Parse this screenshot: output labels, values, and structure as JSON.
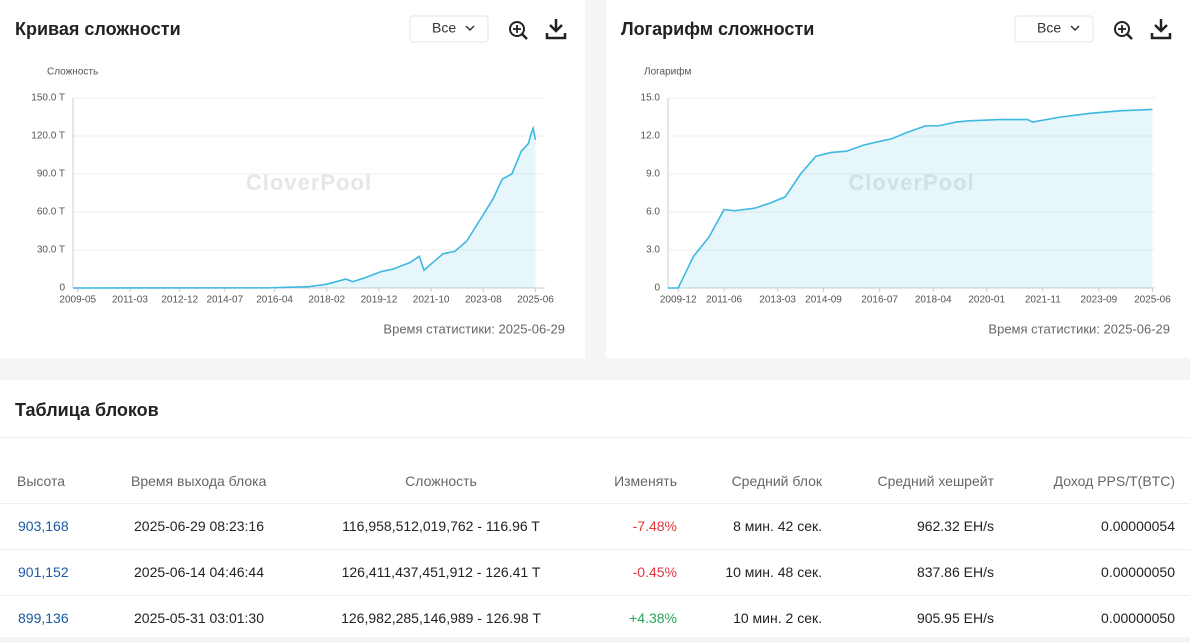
{
  "chart_data": [
    {
      "type": "line",
      "title": "Кривая сложности",
      "filter": "Все",
      "y_label": "Сложность",
      "watermark": "CloverPool",
      "footnote": "Время статистики: 2025-06-29",
      "xlim": [
        "2009-03",
        "2025-10"
      ],
      "xticks": [
        "2009-05",
        "2011-03",
        "2012-12",
        "2014-07",
        "2016-04",
        "2018-02",
        "2019-12",
        "2021-10",
        "2023-08",
        "2025-06"
      ],
      "ylim": [
        0,
        150
      ],
      "yticks": [
        0,
        {
          "value": 30,
          "label": "30.0 T"
        },
        {
          "value": 60,
          "label": "60.0 T"
        },
        {
          "value": 90,
          "label": "90.0 T"
        },
        {
          "value": 120,
          "label": "120.0 T"
        },
        {
          "value": 150,
          "label": "150.0 T"
        }
      ],
      "grid": true,
      "series": [
        {
          "color": "#3db8e0",
          "x": [
            "2009-03",
            "2016-01",
            "2017-06",
            "2018-02",
            "2018-10",
            "2019-01",
            "2019-06",
            "2020-01",
            "2020-06",
            "2021-01",
            "2021-05",
            "2021-07",
            "2021-10",
            "2022-03",
            "2022-08",
            "2023-01",
            "2023-06",
            "2023-12",
            "2024-04",
            "2024-08",
            "2024-12",
            "2025-03",
            "2025-04",
            "2025-05",
            "2025-06"
          ],
          "values": [
            0,
            0.1,
            1,
            3,
            7,
            5,
            8,
            13,
            15,
            20,
            25,
            14,
            19,
            27,
            29,
            37,
            52,
            70,
            86,
            90,
            108,
            114,
            121,
            126,
            117
          ]
        }
      ]
    },
    {
      "type": "line",
      "title": "Логарифм сложности",
      "filter": "Все",
      "y_label": "Логарифм",
      "watermark": "CloverPool",
      "footnote": "Время статистики: 2025-06-29",
      "xlim": [
        "2009-08",
        "2025-07"
      ],
      "xticks": [
        "2009-12",
        "2011-06",
        "2013-03",
        "2014-09",
        "2016-07",
        "2018-04",
        "2020-01",
        "2021-11",
        "2023-09",
        "2025-06"
      ],
      "ylim": [
        0,
        15
      ],
      "yticks": [
        0,
        {
          "value": 3,
          "label": "3.0"
        },
        {
          "value": 6,
          "label": "6.0"
        },
        {
          "value": 9,
          "label": "9.0"
        },
        {
          "value": 12,
          "label": "12.0"
        },
        {
          "value": 15,
          "label": "15.0"
        }
      ],
      "grid": true,
      "series": [
        {
          "color": "#3db8e0",
          "x": [
            "2009-08",
            "2009-12",
            "2010-06",
            "2010-12",
            "2011-06",
            "2011-10",
            "2012-06",
            "2012-12",
            "2013-06",
            "2013-12",
            "2014-06",
            "2014-12",
            "2015-06",
            "2016-01",
            "2016-12",
            "2017-06",
            "2018-01",
            "2018-06",
            "2019-01",
            "2019-06",
            "2020-06",
            "2021-05",
            "2021-07",
            "2022-06",
            "2023-06",
            "2024-06",
            "2025-06"
          ],
          "values": [
            0,
            0,
            2.5,
            4,
            6.2,
            6.1,
            6.3,
            6.7,
            7.2,
            9,
            10.4,
            10.7,
            10.8,
            11.3,
            11.8,
            12.3,
            12.8,
            12.8,
            13.1,
            13.2,
            13.3,
            13.3,
            13.1,
            13.5,
            13.8,
            14.0,
            14.1
          ]
        }
      ]
    }
  ],
  "table": {
    "title": "Таблица блоков",
    "columns": [
      "Высота",
      "Время выхода блока",
      "Сложность",
      "Изменять",
      "Средний блок",
      "Средний хешрейт",
      "Доход PPS/T(BTC)"
    ],
    "rows": [
      [
        "903,168",
        "2025-06-29 08:23:16",
        "116,958,512,019,762 - 116.96 T",
        "-7.48%",
        "8 мин. 42 сек.",
        "962.32 EH/s",
        "0.00000054"
      ],
      [
        "901,152",
        "2025-06-14 04:46:44",
        "126,411,437,451,912 - 126.41 T",
        "-0.45%",
        "10 мин. 48 сек.",
        "837.86 EH/s",
        "0.00000050"
      ],
      [
        "899,136",
        "2025-05-31 03:01:30",
        "126,982,285,146,989 - 126.98 T",
        "+4.38%",
        "10 мин. 2 сек.",
        "905.95 EH/s",
        "0.00000050"
      ]
    ]
  }
}
